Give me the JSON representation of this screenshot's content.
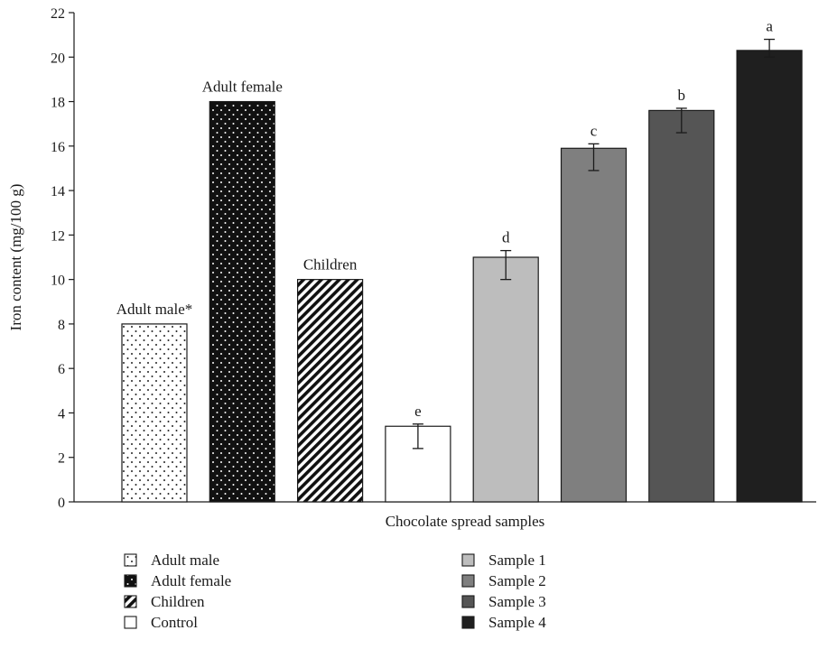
{
  "chart_data": {
    "type": "bar",
    "title": "",
    "xlabel": "Chocolate spread samples",
    "ylabel": "Iron content (mg/100 g)",
    "ylim": [
      0,
      22
    ],
    "yticks": [
      0,
      2,
      4,
      6,
      8,
      10,
      12,
      14,
      16,
      18,
      20,
      22
    ],
    "grid": false,
    "legend_position": "bottom",
    "bars": [
      {
        "category": "Adult male",
        "value": 8.0,
        "label": "Adult male*",
        "pattern": "dots-light",
        "color": "#ffffff"
      },
      {
        "category": "Adult female",
        "value": 18.0,
        "label": "Adult female",
        "pattern": "dots-dark",
        "color": "#111111"
      },
      {
        "category": "Children",
        "value": 10.0,
        "label": "Children",
        "pattern": "diagonal",
        "color": "#ffffff"
      },
      {
        "category": "Control",
        "value": 3.4,
        "error": [
          2.4,
          3.5
        ],
        "letter": "e",
        "pattern": "none",
        "color": "#ffffff"
      },
      {
        "category": "Sample 1",
        "value": 11.0,
        "error": [
          10.0,
          11.3
        ],
        "letter": "d",
        "pattern": "none",
        "color": "#bdbdbd"
      },
      {
        "category": "Sample 2",
        "value": 15.9,
        "error": [
          14.9,
          16.1
        ],
        "letter": "c",
        "pattern": "none",
        "color": "#7f7f7f"
      },
      {
        "category": "Sample 3",
        "value": 17.6,
        "error": [
          16.6,
          17.7
        ],
        "letter": "b",
        "pattern": "none",
        "color": "#555555"
      },
      {
        "category": "Sample 4",
        "value": 20.3,
        "error": [
          20.0,
          20.8
        ],
        "letter": "a",
        "pattern": "none",
        "color": "#1f1f1f"
      }
    ],
    "legend": [
      {
        "label": "Adult male",
        "pattern": "dots-light",
        "color": "#ffffff"
      },
      {
        "label": "Adult female",
        "pattern": "dots-dark",
        "color": "#111111"
      },
      {
        "label": "Children",
        "pattern": "diagonal",
        "color": "#ffffff"
      },
      {
        "label": "Control",
        "pattern": "none",
        "color": "#ffffff"
      },
      {
        "label": "Sample 1",
        "pattern": "none",
        "color": "#bdbdbd"
      },
      {
        "label": "Sample 2",
        "pattern": "none",
        "color": "#7f7f7f"
      },
      {
        "label": "Sample 3",
        "pattern": "none",
        "color": "#555555"
      },
      {
        "label": "Sample 4",
        "pattern": "none",
        "color": "#1f1f1f"
      }
    ]
  }
}
